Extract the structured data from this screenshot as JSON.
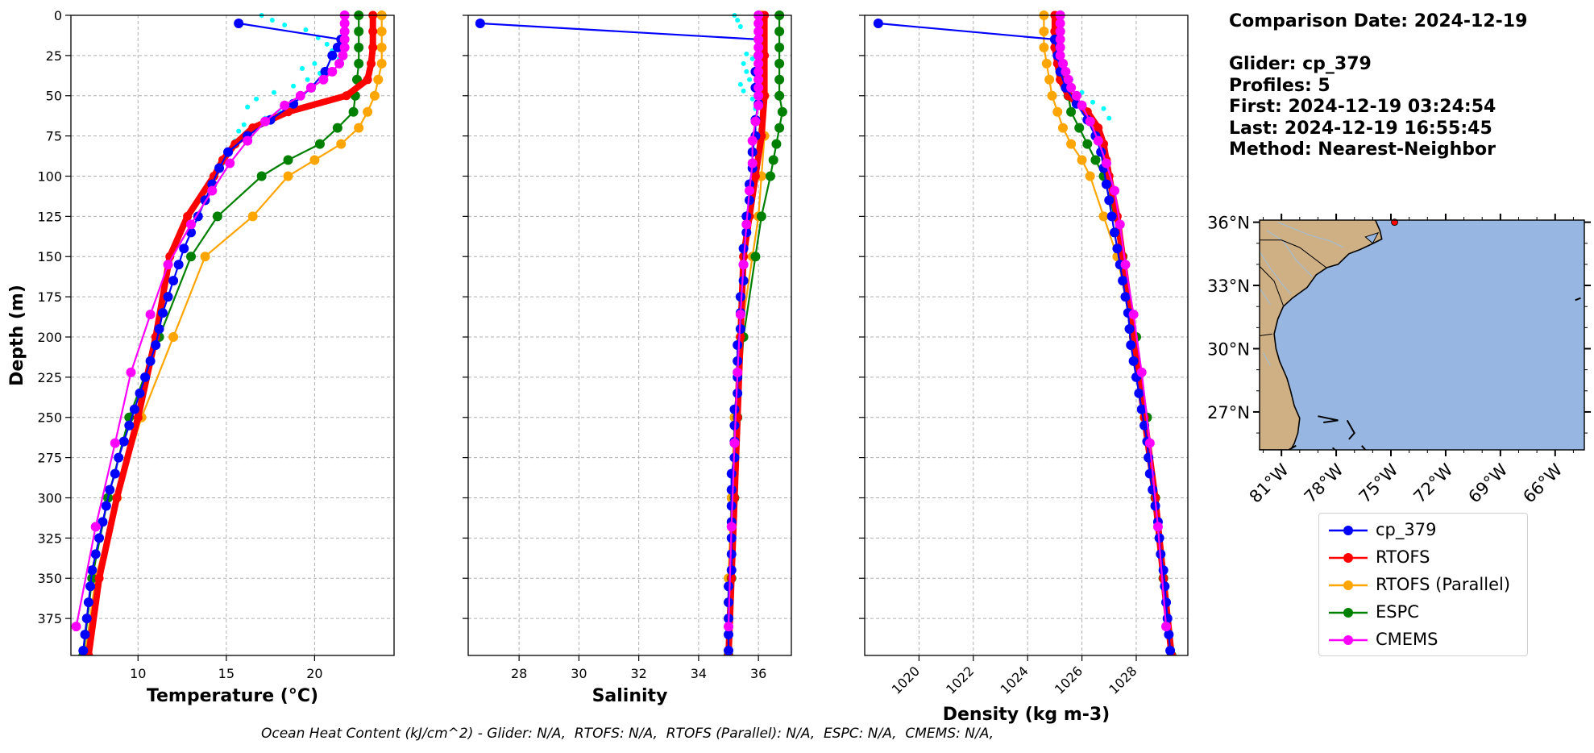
{
  "info": {
    "comparison": "Comparison Date: 2024-12-19",
    "glider": "Glider: cp_379",
    "profiles": "Profiles: 5",
    "first": "First: 2024-12-19 03:24:54",
    "last": "Last: 2024-12-19 16:55:45",
    "method": "Method: Nearest-Neighbor"
  },
  "footer": "Ocean Heat Content (kJ/cm^2) - Glider: N/A,  RTOFS: N/A,  RTOFS (Parallel): N/A,  ESPC: N/A,  CMEMS: N/A,",
  "colors": {
    "cp_379": "#0000ff",
    "RTOFS": "#ff0000",
    "RTOFS (Parallel)": "#ffa500",
    "ESPC": "#008000",
    "CMEMS": "#ff00ff",
    "glider_raw": "#00ffff",
    "ocean": "#97b6e1",
    "land": "#cfaf84"
  },
  "legend": [
    "cp_379",
    "RTOFS",
    "RTOFS (Parallel)",
    "ESPC",
    "CMEMS"
  ],
  "chart_data": [
    {
      "type": "line",
      "xlabel": "Temperature (°C)",
      "ylabel": "Depth (m)",
      "xlim": [
        6.2,
        24.5
      ],
      "ylim": [
        398,
        0
      ],
      "xticks": [
        10,
        15,
        20
      ],
      "yticks": [
        0,
        25,
        50,
        75,
        100,
        125,
        150,
        175,
        200,
        225,
        250,
        275,
        300,
        325,
        350,
        375
      ],
      "grid": true,
      "series": [
        {
          "name": "cp_379",
          "depth": [
            5,
            15,
            20,
            25,
            35,
            45,
            55,
            65,
            75,
            85,
            95,
            105,
            115,
            125,
            135,
            145,
            155,
            165,
            175,
            185,
            195,
            205,
            215,
            225,
            235,
            245,
            255,
            265,
            275,
            285,
            295,
            305,
            315,
            325,
            335,
            345,
            355,
            365,
            375,
            385,
            395
          ],
          "values": [
            15.7,
            21.5,
            21.3,
            21.0,
            20.6,
            19.8,
            18.8,
            17.5,
            16.2,
            15.1,
            14.6,
            14.2,
            13.8,
            13.4,
            13.0,
            12.6,
            12.3,
            12.0,
            11.7,
            11.4,
            11.2,
            11.0,
            10.7,
            10.4,
            10.1,
            9.8,
            9.5,
            9.2,
            8.9,
            8.7,
            8.4,
            8.2,
            8.0,
            7.8,
            7.6,
            7.4,
            7.3,
            7.2,
            7.1,
            7.0,
            6.9
          ]
        },
        {
          "name": "RTOFS",
          "depth": [
            0,
            10,
            20,
            30,
            40,
            50,
            60,
            70,
            80,
            90,
            100,
            125,
            150,
            200,
            250,
            300,
            350,
            398
          ],
          "values": [
            23.3,
            23.3,
            23.3,
            23.2,
            23.0,
            21.8,
            18.5,
            16.5,
            15.5,
            14.8,
            14.3,
            12.8,
            11.8,
            11.0,
            10.0,
            8.8,
            7.8,
            7.2
          ]
        },
        {
          "name": "RTOFS (Parallel)",
          "depth": [
            0,
            10,
            20,
            30,
            40,
            50,
            60,
            70,
            80,
            90,
            100,
            125,
            150,
            200,
            250,
            300,
            350,
            398
          ],
          "values": [
            23.8,
            23.8,
            23.8,
            23.8,
            23.6,
            23.4,
            23.0,
            22.5,
            21.5,
            20.0,
            18.5,
            16.5,
            13.8,
            12.0,
            10.2,
            8.8,
            7.6,
            7.0
          ]
        },
        {
          "name": "ESPC",
          "depth": [
            0,
            10,
            20,
            30,
            40,
            50,
            60,
            70,
            80,
            90,
            100,
            125,
            150,
            200,
            250,
            300,
            350,
            398
          ],
          "values": [
            22.5,
            22.5,
            22.5,
            22.5,
            22.4,
            22.3,
            22.2,
            21.3,
            20.3,
            18.5,
            17.0,
            14.5,
            13.0,
            11.2,
            9.5,
            8.3,
            7.4,
            6.9
          ]
        },
        {
          "name": "CMEMS",
          "depth": [
            0,
            5,
            10,
            15,
            20,
            25,
            30,
            35,
            40,
            45,
            50,
            56,
            66,
            78,
            92,
            109,
            130,
            155,
            186,
            222,
            266,
            318,
            380
          ],
          "values": [
            21.7,
            21.7,
            21.7,
            21.7,
            21.7,
            21.6,
            21.4,
            21.0,
            20.5,
            19.8,
            19.2,
            18.3,
            17.2,
            16.2,
            15.2,
            14.2,
            13.0,
            11.7,
            10.7,
            9.6,
            8.7,
            7.6,
            6.5
          ]
        }
      ]
    },
    {
      "type": "line",
      "xlabel": "Salinity",
      "xlim": [
        26.3,
        37.1
      ],
      "ylim": [
        398,
        0
      ],
      "xticks": [
        28,
        30,
        32,
        34,
        36
      ],
      "yticks": [
        0,
        25,
        50,
        75,
        100,
        125,
        150,
        175,
        200,
        225,
        250,
        275,
        300,
        325,
        350,
        375
      ],
      "grid": true,
      "series": [
        {
          "name": "cp_379",
          "depth": [
            5,
            15,
            25,
            35,
            45,
            55,
            65,
            75,
            85,
            95,
            105,
            115,
            125,
            135,
            145,
            155,
            165,
            175,
            185,
            195,
            205,
            215,
            225,
            235,
            245,
            255,
            265,
            275,
            285,
            295,
            305,
            315,
            325,
            335,
            345,
            355,
            365,
            375,
            385,
            395
          ],
          "values": [
            26.7,
            36.0,
            36.0,
            35.9,
            35.9,
            36.0,
            35.9,
            35.9,
            35.8,
            35.8,
            35.7,
            35.7,
            35.6,
            35.6,
            35.5,
            35.5,
            35.5,
            35.4,
            35.4,
            35.4,
            35.3,
            35.3,
            35.3,
            35.3,
            35.2,
            35.2,
            35.2,
            35.2,
            35.1,
            35.1,
            35.1,
            35.1,
            35.1,
            35.1,
            35.1,
            35.0,
            35.0,
            35.0,
            35.0,
            35.0
          ]
        },
        {
          "name": "RTOFS",
          "depth": [
            0,
            25,
            50,
            75,
            100,
            125,
            150,
            200,
            250,
            300,
            350,
            398
          ],
          "values": [
            36.2,
            36.2,
            36.2,
            36.1,
            35.9,
            35.7,
            35.5,
            35.4,
            35.3,
            35.2,
            35.1,
            35.0
          ]
        },
        {
          "name": "RTOFS (Parallel)",
          "depth": [
            0,
            25,
            50,
            75,
            100,
            125,
            150,
            200,
            250,
            300,
            350,
            398
          ],
          "values": [
            36.1,
            36.1,
            36.2,
            36.2,
            36.1,
            36.0,
            35.8,
            35.4,
            35.2,
            35.1,
            35.0,
            35.0
          ]
        },
        {
          "name": "ESPC",
          "depth": [
            0,
            10,
            20,
            30,
            40,
            50,
            60,
            70,
            80,
            90,
            100,
            125,
            150,
            200,
            250,
            300,
            350,
            398
          ],
          "values": [
            36.7,
            36.7,
            36.7,
            36.7,
            36.7,
            36.7,
            36.8,
            36.7,
            36.6,
            36.5,
            36.4,
            36.1,
            35.9,
            35.5,
            35.3,
            35.2,
            35.1,
            35.0
          ]
        },
        {
          "name": "CMEMS",
          "depth": [
            0,
            5,
            10,
            15,
            20,
            25,
            30,
            35,
            40,
            45,
            50,
            56,
            66,
            78,
            92,
            109,
            130,
            155,
            186,
            222,
            266,
            318,
            380
          ],
          "values": [
            36.0,
            36.0,
            36.0,
            36.0,
            36.0,
            36.0,
            36.0,
            36.0,
            36.0,
            36.0,
            36.0,
            36.0,
            35.9,
            35.8,
            35.8,
            35.7,
            35.6,
            35.5,
            35.4,
            35.3,
            35.2,
            35.1,
            35.0
          ]
        }
      ]
    },
    {
      "type": "line",
      "xlabel": "Density (kg m-3)",
      "xlim": [
        1018.0,
        1029.9
      ],
      "ylim": [
        398,
        0
      ],
      "xticks": [
        1020,
        1022,
        1024,
        1026,
        1028
      ],
      "yticks": [
        0,
        25,
        50,
        75,
        100,
        125,
        150,
        175,
        200,
        225,
        250,
        275,
        300,
        325,
        350,
        375
      ],
      "grid": true,
      "series": [
        {
          "name": "cp_379",
          "depth": [
            5,
            15,
            25,
            35,
            45,
            55,
            65,
            75,
            85,
            95,
            105,
            115,
            125,
            135,
            145,
            155,
            165,
            175,
            185,
            195,
            205,
            215,
            225,
            235,
            245,
            255,
            265,
            275,
            285,
            295,
            305,
            315,
            325,
            335,
            345,
            355,
            365,
            375,
            385,
            395
          ],
          "values": [
            1018.5,
            1025.0,
            1025.1,
            1025.2,
            1025.4,
            1025.8,
            1026.2,
            1026.5,
            1026.7,
            1026.8,
            1026.9,
            1027.0,
            1027.1,
            1027.2,
            1027.3,
            1027.4,
            1027.5,
            1027.6,
            1027.7,
            1027.75,
            1027.8,
            1027.9,
            1028.0,
            1028.1,
            1028.2,
            1028.3,
            1028.4,
            1028.45,
            1028.5,
            1028.6,
            1028.7,
            1028.8,
            1028.85,
            1028.9,
            1029.0,
            1029.05,
            1029.1,
            1029.15,
            1029.2,
            1029.25
          ]
        },
        {
          "name": "RTOFS",
          "depth": [
            0,
            10,
            20,
            30,
            40,
            50,
            60,
            70,
            80,
            90,
            100,
            125,
            150,
            200,
            250,
            300,
            350,
            398
          ],
          "values": [
            1025.0,
            1025.0,
            1025.0,
            1025.1,
            1025.2,
            1025.5,
            1026.2,
            1026.6,
            1026.8,
            1026.9,
            1027.0,
            1027.3,
            1027.5,
            1027.9,
            1028.3,
            1028.7,
            1029.0,
            1029.3
          ]
        },
        {
          "name": "RTOFS (Parallel)",
          "depth": [
            0,
            10,
            20,
            30,
            40,
            50,
            60,
            70,
            80,
            90,
            100,
            125,
            150,
            200,
            250,
            300,
            350,
            398
          ],
          "values": [
            1024.6,
            1024.6,
            1024.6,
            1024.7,
            1024.8,
            1024.9,
            1025.1,
            1025.3,
            1025.6,
            1026.0,
            1026.3,
            1026.8,
            1027.3,
            1027.9,
            1028.3,
            1028.7,
            1029.0,
            1029.3
          ]
        },
        {
          "name": "ESPC",
          "depth": [
            0,
            10,
            20,
            30,
            40,
            50,
            60,
            70,
            80,
            90,
            100,
            125,
            150,
            200,
            250,
            300,
            350,
            398
          ],
          "values": [
            1025.2,
            1025.2,
            1025.2,
            1025.3,
            1025.4,
            1025.5,
            1025.6,
            1025.9,
            1026.2,
            1026.5,
            1026.8,
            1027.2,
            1027.5,
            1028.0,
            1028.4,
            1028.7,
            1029.0,
            1029.3
          ]
        },
        {
          "name": "CMEMS",
          "depth": [
            0,
            5,
            10,
            15,
            20,
            25,
            30,
            35,
            40,
            45,
            50,
            56,
            66,
            78,
            92,
            109,
            130,
            155,
            186,
            222,
            266,
            318,
            380
          ],
          "values": [
            1025.2,
            1025.2,
            1025.2,
            1025.2,
            1025.2,
            1025.2,
            1025.3,
            1025.4,
            1025.5,
            1025.6,
            1025.8,
            1026.0,
            1026.3,
            1026.6,
            1026.9,
            1027.2,
            1027.4,
            1027.6,
            1027.9,
            1028.2,
            1028.5,
            1028.8,
            1029.1
          ]
        }
      ]
    }
  ],
  "map": {
    "lat_labels": [
      "36°N",
      "33°N",
      "30°N",
      "27°N"
    ],
    "lon_labels": [
      "81°W",
      "78°W",
      "75°W",
      "72°W",
      "69°W",
      "66°W"
    ],
    "extent": {
      "lon_min": -82.2,
      "lon_max": -64.4,
      "lat_min": 25.2,
      "lat_max": 36.1
    },
    "glider_position": {
      "lon": -74.8,
      "lat": 36.0
    }
  }
}
